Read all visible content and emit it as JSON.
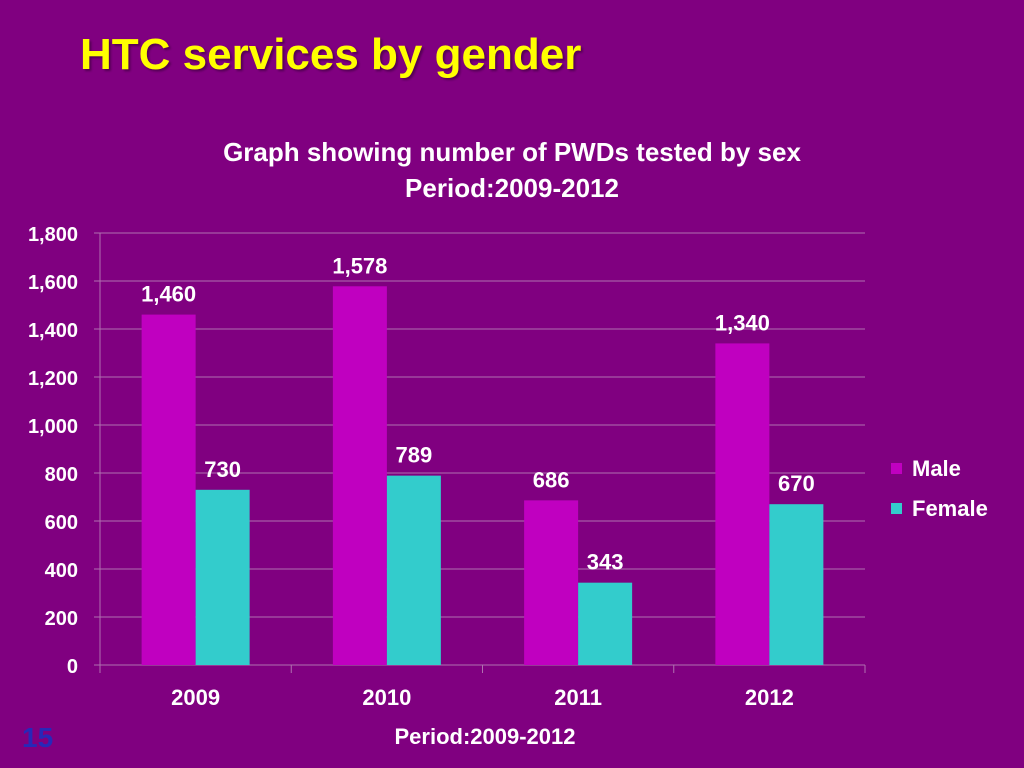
{
  "slide": {
    "title": "HTC services by gender",
    "number": "15"
  },
  "colors": {
    "background": "#800080",
    "title": "#FFFF00",
    "male": "#C000C0",
    "female": "#33CCCC",
    "gridline": "#B070B0",
    "text": "#FFFFFF",
    "slide_number": "#2828B8"
  },
  "chart_data": {
    "type": "bar",
    "title": "Graph showing number of PWDs tested by sex",
    "subtitle": "Period:2009-2012",
    "xlabel": "Period:2009-2012",
    "ylabel": "",
    "categories": [
      "2009",
      "2010",
      "2011",
      "2012"
    ],
    "series": [
      {
        "name": "Male",
        "values": [
          1460,
          1578,
          686,
          1340
        ],
        "labels": [
          "1,460",
          "1,578",
          "686",
          "1,340"
        ]
      },
      {
        "name": "Female",
        "values": [
          730,
          789,
          343,
          670
        ],
        "labels": [
          "730",
          "789",
          "343",
          "670"
        ]
      }
    ],
    "ylim": [
      0,
      1800
    ],
    "yticks": [
      "0",
      "200",
      "400",
      "600",
      "800",
      "1,000",
      "1,200",
      "1,400",
      "1,600",
      "1,800"
    ],
    "grid": true,
    "legend_position": "right"
  }
}
